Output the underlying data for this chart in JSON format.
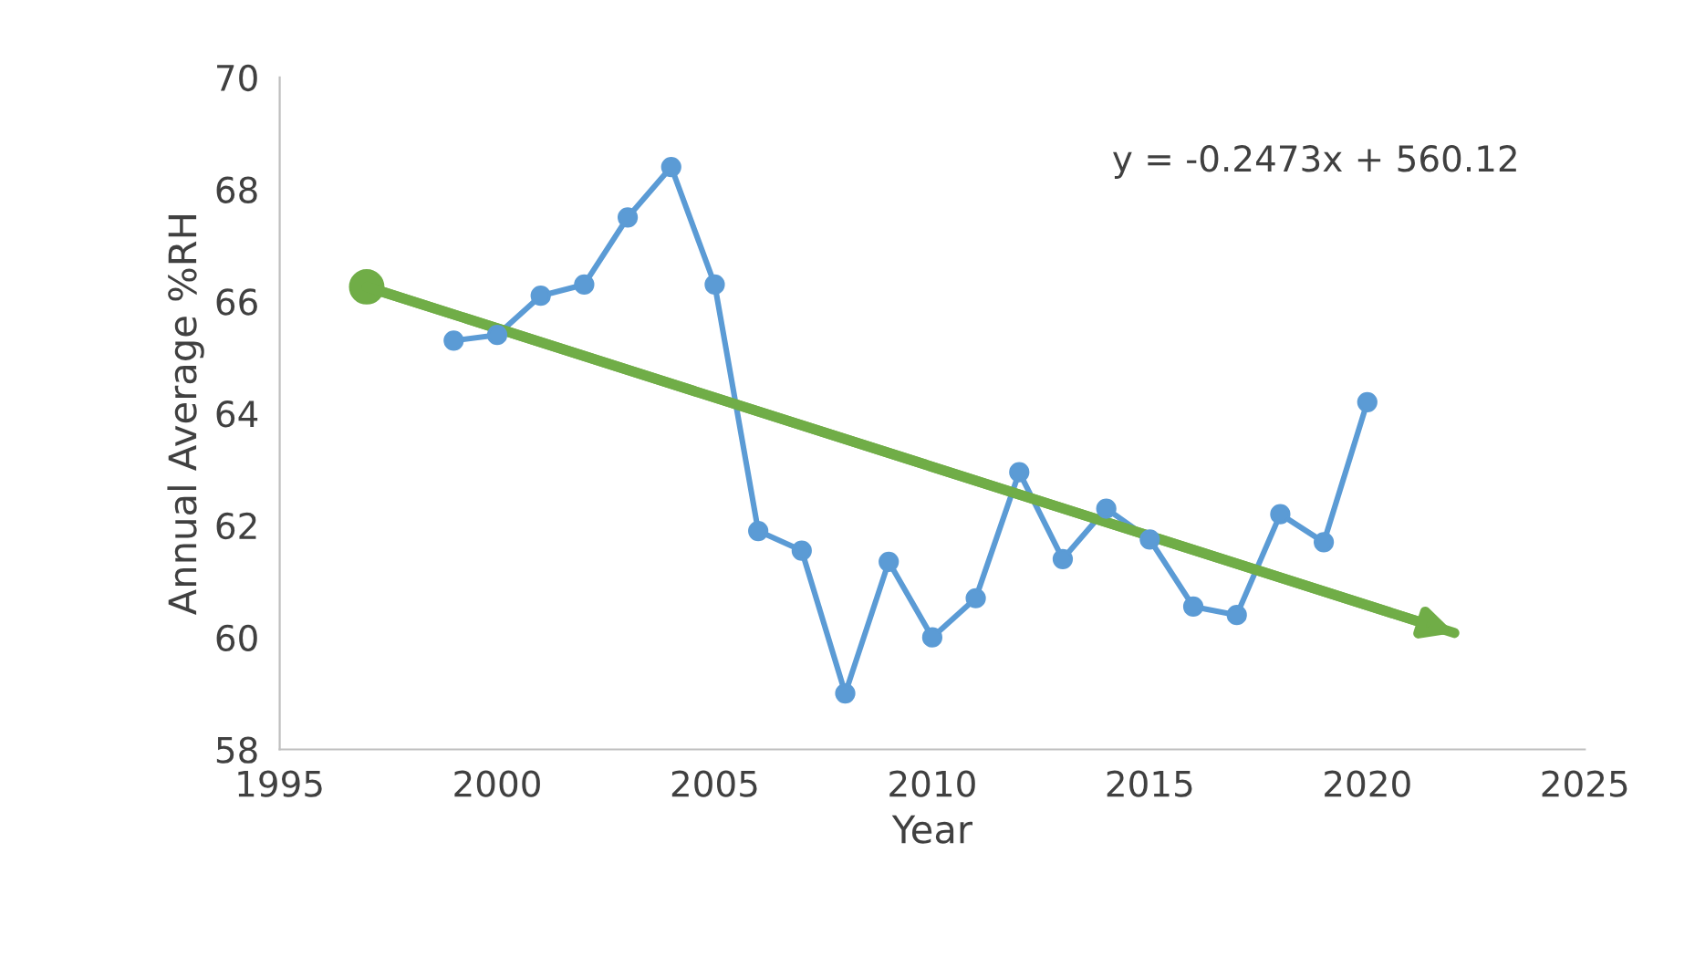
{
  "chart_data": {
    "type": "line",
    "xlabel": "Year",
    "ylabel": "Annual Average %RH",
    "x": [
      1999,
      2000,
      2001,
      2002,
      2003,
      2004,
      2005,
      2006,
      2007,
      2008,
      2009,
      2010,
      2011,
      2012,
      2013,
      2014,
      2015,
      2016,
      2017,
      2018,
      2019,
      2020
    ],
    "series": [
      {
        "color": "#5b9bd5",
        "values": [
          65.3,
          65.4,
          66.1,
          66.3,
          67.5,
          68.4,
          66.3,
          61.9,
          61.55,
          59.0,
          61.35,
          60.0,
          60.7,
          62.95,
          61.4,
          62.3,
          61.75,
          60.55,
          60.4,
          62.2,
          61.7,
          64.2
        ],
        "marker": "circle"
      },
      {
        "type": "line",
        "color": "#70ad47",
        "x": [
          1997,
          2022
        ],
        "values": [
          66.26,
          60.08
        ],
        "marker": "circle"
      }
    ],
    "annotations": [
      "y = -0.2473x + 560.12"
    ],
    "xlim": [
      1995,
      2025
    ],
    "xticks": [
      1995,
      2000,
      2005,
      2010,
      2015,
      2020,
      2025
    ],
    "ylim": [
      58,
      70
    ],
    "yticks": [
      58,
      60,
      62,
      64,
      66,
      68,
      70
    ],
    "grid": false,
    "legend": false,
    "line_style": "solid"
  }
}
